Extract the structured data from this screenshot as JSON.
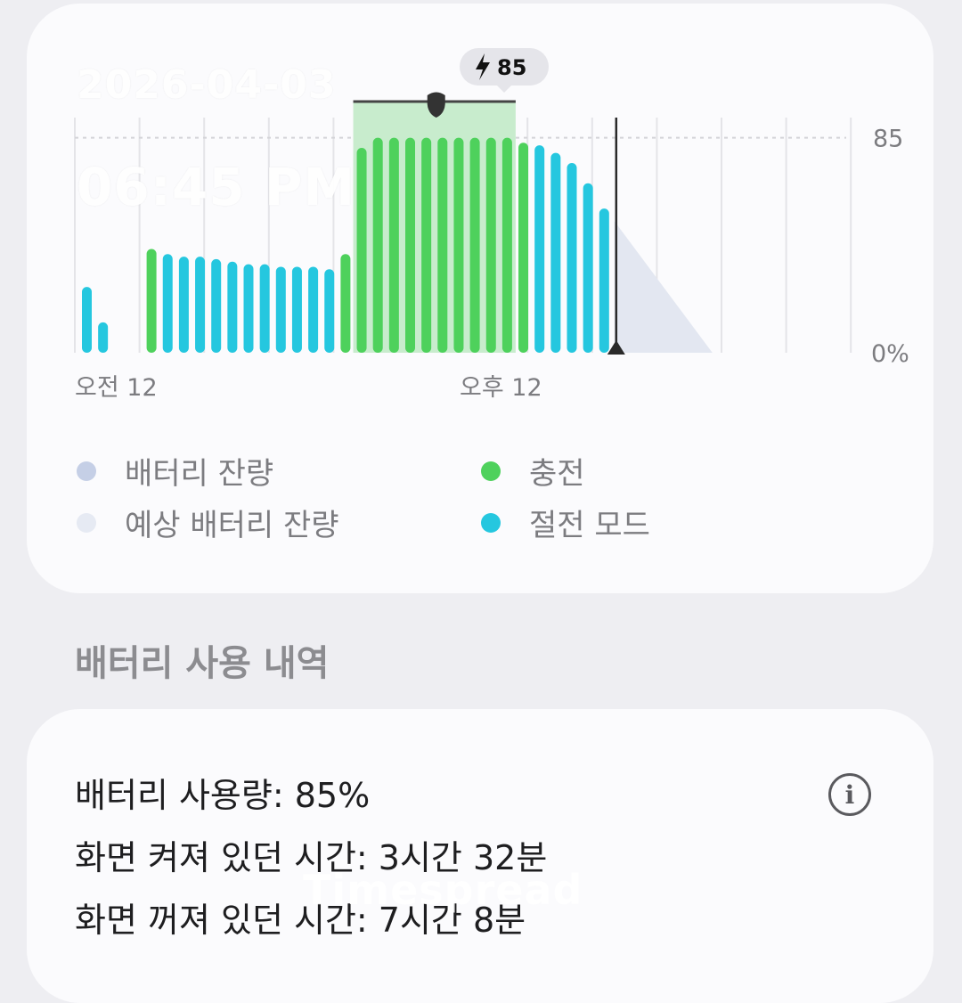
{
  "overlay": {
    "date": "2026-04-03",
    "time": "06:45 PM"
  },
  "chart_data": {
    "type": "bar",
    "ylim": [
      0,
      100
    ],
    "y_ticks": [
      "85",
      "0%"
    ],
    "x_tick_labels": [
      "오전 12",
      "오후 12"
    ],
    "tooltip": {
      "icon": "lightning-icon",
      "value": "85"
    },
    "max_level": 85,
    "bars": [
      {
        "v": 26,
        "mode": "save"
      },
      {
        "v": 12,
        "mode": "save"
      },
      {
        "v": 0,
        "mode": "none"
      },
      {
        "v": 0,
        "mode": "none"
      },
      {
        "v": 41,
        "mode": "charge"
      },
      {
        "v": 39,
        "mode": "save"
      },
      {
        "v": 38,
        "mode": "save"
      },
      {
        "v": 38,
        "mode": "save"
      },
      {
        "v": 37,
        "mode": "save"
      },
      {
        "v": 36,
        "mode": "save"
      },
      {
        "v": 35,
        "mode": "save"
      },
      {
        "v": 35,
        "mode": "save"
      },
      {
        "v": 34,
        "mode": "save"
      },
      {
        "v": 34,
        "mode": "save"
      },
      {
        "v": 34,
        "mode": "save"
      },
      {
        "v": 33,
        "mode": "save"
      },
      {
        "v": 39,
        "mode": "charge"
      },
      {
        "v": 81,
        "mode": "charge"
      },
      {
        "v": 85,
        "mode": "charge"
      },
      {
        "v": 85,
        "mode": "charge"
      },
      {
        "v": 85,
        "mode": "charge"
      },
      {
        "v": 85,
        "mode": "charge"
      },
      {
        "v": 85,
        "mode": "charge"
      },
      {
        "v": 85,
        "mode": "charge"
      },
      {
        "v": 85,
        "mode": "charge"
      },
      {
        "v": 85,
        "mode": "charge"
      },
      {
        "v": 85,
        "mode": "charge"
      },
      {
        "v": 83,
        "mode": "charge"
      },
      {
        "v": 82,
        "mode": "save"
      },
      {
        "v": 79,
        "mode": "save"
      },
      {
        "v": 75,
        "mode": "save"
      },
      {
        "v": 67,
        "mode": "save"
      },
      {
        "v": 57,
        "mode": "save"
      }
    ],
    "projected": {
      "from": 52,
      "to": 0
    },
    "legend": [
      {
        "label": "배터리 잔량",
        "color": "#c5cfe6"
      },
      {
        "label": "예상 배터리 잔량",
        "color": "#e6eaf3"
      },
      {
        "label": "충전",
        "color": "#4ed15c"
      },
      {
        "label": "절전 모드",
        "color": "#25c7df"
      }
    ],
    "colors": {
      "charge": "#4ed15c",
      "save": "#25c7df",
      "charge_band": "#c8eccd",
      "projected": "#e3e7f1",
      "grid": "#e4e4e8"
    }
  },
  "section_title": "배터리 사용 내역",
  "usage": {
    "battery_used": "배터리 사용량: 85%",
    "screen_on": "화면 켜져 있던 시간: 3시간 32분",
    "screen_off": "화면 꺼져 있던 시간: 7시간 8분",
    "info_icon": "info-icon",
    "info_glyph": "i"
  },
  "watermark": "Timespread"
}
